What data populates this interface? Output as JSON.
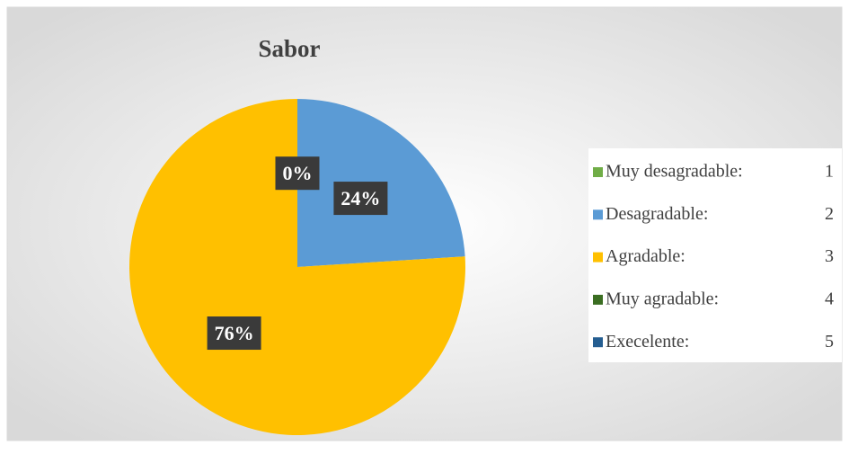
{
  "chart_data": {
    "type": "pie",
    "title": "Sabor",
    "categories": [
      "Muy desagradable:",
      "Desagradable:",
      "Agradable:",
      "Muy agradable:",
      "Execelente:"
    ],
    "codes": [
      1,
      2,
      3,
      4,
      5
    ],
    "values": [
      0,
      24,
      76,
      0,
      0
    ],
    "value_labels": [
      "0%",
      "24%",
      "76%",
      null,
      null
    ],
    "colors": [
      "#70AD47",
      "#5B9BD5",
      "#FFC000",
      "#3B6E22",
      "#255E91"
    ],
    "legend": "right"
  }
}
